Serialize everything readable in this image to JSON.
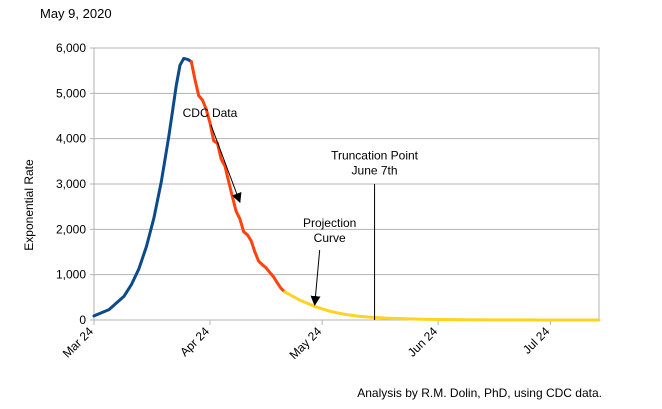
{
  "header": {
    "date": "May 9, 2020"
  },
  "footer": {
    "note": "Analysis by R.M. Dolin, PhD, using  CDC data."
  },
  "chart_data": {
    "type": "line",
    "ylabel": "Exponential Rate",
    "xlabel": "",
    "ylim": [
      0,
      6000
    ],
    "yticks": [
      0,
      1000,
      2000,
      3000,
      4000,
      5000,
      6000
    ],
    "ytick_labels": [
      "0",
      "1,000",
      "2,000",
      "3,000",
      "4,000",
      "5,000",
      "6,000"
    ],
    "xlim": [
      "2020-03-24",
      "2020-08-06"
    ],
    "xticks": [
      "2020-03-24",
      "2020-04-24",
      "2020-05-24",
      "2020-06-24",
      "2020-07-24"
    ],
    "xtick_labels": [
      "Mar 24",
      "Apr 24",
      "May 24",
      "Jun 24",
      "Jul 24"
    ],
    "grid": true,
    "colors": {
      "growth": "#0b4a8b",
      "cdc": "#ff420e",
      "projection": "#ffd320",
      "truncation": "#000000"
    },
    "series": [
      {
        "x": [
          "2020-03-24",
          "2020-03-28",
          "2020-04-01",
          "2020-04-03",
          "2020-04-05",
          "2020-04-07",
          "2020-04-09",
          "2020-04-11",
          "2020-04-13",
          "2020-04-14",
          "2020-04-15",
          "2020-04-16",
          "2020-04-17",
          "2020-04-18",
          "2020-04-19"
        ],
        "y": [
          90,
          230,
          520,
          780,
          1130,
          1620,
          2250,
          3050,
          4050,
          4620,
          5180,
          5620,
          5770,
          5750,
          5700
        ]
      },
      {
        "x": [
          "2020-04-19",
          "2020-04-20",
          "2020-04-21",
          "2020-04-22",
          "2020-04-23",
          "2020-04-24",
          "2020-04-25",
          "2020-04-26",
          "2020-04-27",
          "2020-04-28",
          "2020-04-29",
          "2020-04-30",
          "2020-05-01",
          "2020-05-02",
          "2020-05-03",
          "2020-05-04",
          "2020-05-05",
          "2020-05-06",
          "2020-05-07",
          "2020-05-08",
          "2020-05-09",
          "2020-05-10",
          "2020-05-11",
          "2020-05-12",
          "2020-05-13",
          "2020-05-14"
        ],
        "y": [
          5700,
          5300,
          4950,
          4850,
          4650,
          4350,
          3950,
          3900,
          3550,
          3400,
          3050,
          2720,
          2400,
          2230,
          1950,
          1880,
          1750,
          1500,
          1300,
          1220,
          1150,
          1050,
          950,
          820,
          700,
          620
        ]
      },
      {
        "x": [
          "2020-05-14",
          "2020-05-18",
          "2020-05-22",
          "2020-05-26",
          "2020-05-30",
          "2020-06-03",
          "2020-06-07",
          "2020-06-11",
          "2020-06-15",
          "2020-06-20",
          "2020-06-25",
          "2020-07-01",
          "2020-07-08",
          "2020-07-15",
          "2020-07-22",
          "2020-07-29",
          "2020-08-06"
        ],
        "y": [
          620,
          440,
          300,
          195,
          125,
          80,
          55,
          38,
          26,
          16,
          10,
          6,
          3,
          2,
          1,
          0,
          0
        ]
      }
    ],
    "annotations": [
      {
        "id": "cdc",
        "lines": [
          "CDC Data"
        ],
        "x": "2020-04-24",
        "y": 4480,
        "arrow_x": "2020-05-02",
        "arrow_y": 2600
      },
      {
        "id": "projection",
        "lines": [
          "Projection",
          "Curve"
        ],
        "x": "2020-05-26",
        "y": 2050,
        "arrow_x": "2020-05-22",
        "arrow_y": 330
      },
      {
        "id": "truncation",
        "lines": [
          "Truncation Point",
          "June 7th"
        ],
        "x": "2020-06-07",
        "y": 3540,
        "line_x": "2020-06-07",
        "line_y_top": 3000
      }
    ]
  }
}
